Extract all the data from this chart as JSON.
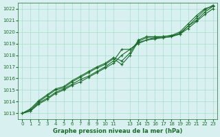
{
  "bg_color": "#d8f0f0",
  "grid_color": "#aaddcc",
  "line_color": "#1a6b2a",
  "x_ticks": [
    0,
    1,
    2,
    3,
    4,
    5,
    6,
    7,
    8,
    9,
    10,
    11,
    13,
    14,
    15,
    16,
    17,
    18,
    19,
    20,
    21,
    22,
    23
  ],
  "xlim": [
    -0.5,
    23.5
  ],
  "ylim": [
    1012.5,
    1022.5
  ],
  "yticks": [
    1013,
    1014,
    1015,
    1016,
    1017,
    1018,
    1019,
    1020,
    1021,
    1022
  ],
  "xlabel": "Graphe pression niveau de la mer (hPa)",
  "series": [
    [
      1013.0,
      1013.2,
      1013.8,
      1014.2,
      1014.7,
      1015.0,
      1015.4,
      1015.7,
      1016.1,
      1016.5,
      1016.9,
      1017.3,
      1018.0,
      1018.5,
      1019.0,
      1019.3,
      1019.5,
      1019.6,
      1019.7,
      1019.8,
      1020.5,
      1021.0,
      1021.7,
      1022.2
    ],
    [
      1013.0,
      1013.2,
      1013.9,
      1014.3,
      1014.8,
      1015.1,
      1015.5,
      1015.9,
      1016.2,
      1016.6,
      1017.0,
      1017.5,
      1018.5,
      1018.5,
      1019.1,
      1019.3,
      1019.4,
      1019.5,
      1019.6,
      1019.8,
      1020.3,
      1020.9,
      1021.5,
      1022.0
    ],
    [
      1013.0,
      1013.3,
      1014.0,
      1014.5,
      1015.0,
      1015.2,
      1015.7,
      1016.1,
      1016.5,
      1016.9,
      1017.2,
      1017.7,
      1017.2,
      1018.0,
      1019.2,
      1019.5,
      1019.5,
      1019.5,
      1019.6,
      1019.9,
      1020.5,
      1021.2,
      1021.9,
      1022.3
    ],
    [
      1013.0,
      1013.4,
      1014.1,
      1014.6,
      1015.1,
      1015.3,
      1015.8,
      1016.2,
      1016.6,
      1017.0,
      1017.3,
      1017.8,
      1017.5,
      1018.2,
      1019.3,
      1019.6,
      1019.6,
      1019.6,
      1019.7,
      1020.0,
      1020.7,
      1021.4,
      1022.0,
      1022.2
    ]
  ]
}
